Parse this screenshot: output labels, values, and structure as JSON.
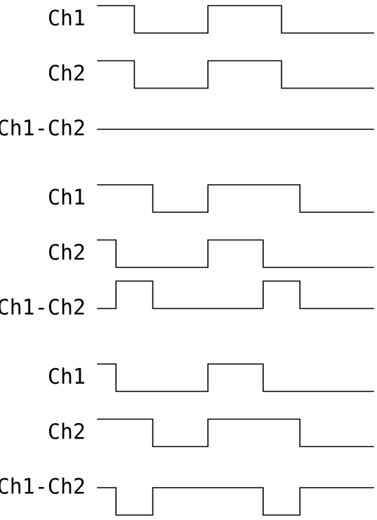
{
  "groups": [
    {
      "traces": [
        {
          "label": "Ch1",
          "levels": [
            1,
            1,
            0,
            0,
            0,
            0,
            1,
            1,
            1,
            1,
            0,
            0,
            0,
            0,
            0
          ]
        },
        {
          "label": "Ch2",
          "levels": [
            1,
            1,
            0,
            0,
            0,
            0,
            1,
            1,
            1,
            1,
            0,
            0,
            0,
            0,
            0
          ]
        },
        {
          "label": "Ch1-Ch2",
          "levels": [
            0,
            0,
            0,
            0,
            0,
            0,
            0,
            0,
            0,
            0,
            0,
            0,
            0,
            0,
            0
          ]
        }
      ]
    },
    {
      "traces": [
        {
          "label": "Ch1",
          "levels": [
            1,
            1,
            1,
            0,
            0,
            0,
            1,
            1,
            1,
            1,
            1,
            0,
            0,
            0,
            0
          ]
        },
        {
          "label": "Ch2",
          "levels": [
            1,
            0,
            0,
            0,
            0,
            0,
            1,
            1,
            1,
            0,
            0,
            0,
            0,
            0,
            0
          ]
        },
        {
          "label": "Ch1-Ch2",
          "levels": [
            0,
            1,
            1,
            0,
            0,
            0,
            0,
            0,
            0,
            1,
            1,
            0,
            0,
            0,
            0
          ]
        }
      ]
    },
    {
      "traces": [
        {
          "label": "Ch1",
          "levels": [
            1,
            0,
            0,
            0,
            0,
            0,
            1,
            1,
            1,
            0,
            0,
            0,
            0,
            0,
            0
          ]
        },
        {
          "label": "Ch2",
          "levels": [
            1,
            1,
            1,
            0,
            0,
            0,
            1,
            1,
            1,
            1,
            1,
            0,
            0,
            0,
            0
          ]
        },
        {
          "label": "Ch1-Ch2",
          "levels": [
            0,
            -1,
            -1,
            0,
            0,
            0,
            0,
            0,
            0,
            -1,
            -1,
            0,
            0,
            0,
            0
          ]
        }
      ]
    }
  ]
}
